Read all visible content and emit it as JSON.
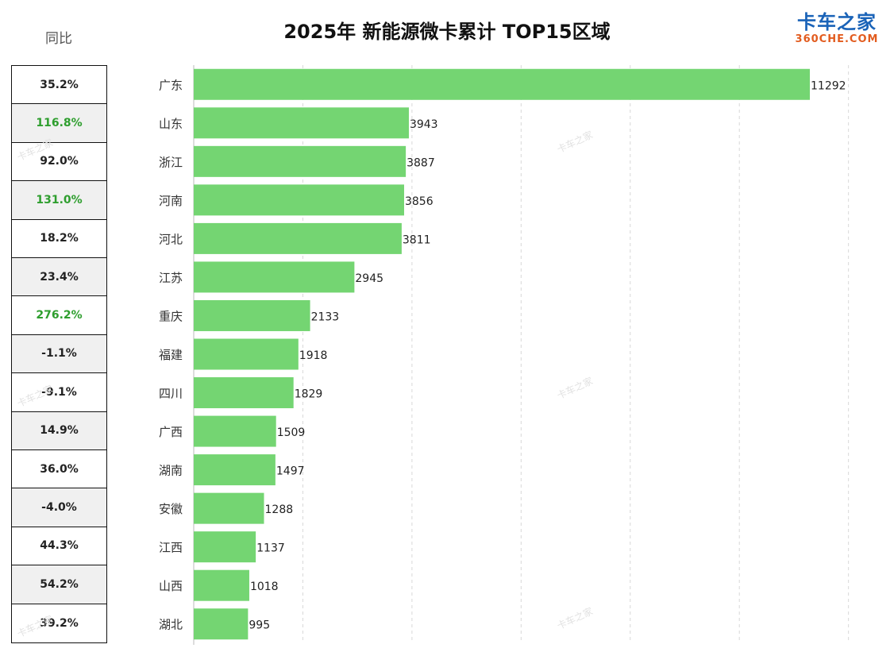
{
  "title": "2025年 新能源微卡累计 TOP15区域",
  "yoy_header": "同比",
  "logo": {
    "main": "卡车之家",
    "sub": "360CHE.COM"
  },
  "watermark": "卡车之家",
  "colors": {
    "bar": "#74d572",
    "yoy_positive_high": "#2e9e2e",
    "grid": "#d8d8d8"
  },
  "chart_data": {
    "type": "bar",
    "orientation": "horizontal",
    "title": "2025年 新能源微卡累计 TOP15区域",
    "categories": [
      "广东",
      "山东",
      "浙江",
      "河南",
      "河北",
      "江苏",
      "重庆",
      "福建",
      "四川",
      "广西",
      "湖南",
      "安徽",
      "江西",
      "山西",
      "湖北"
    ],
    "values": [
      11292,
      3943,
      3887,
      3856,
      3811,
      2945,
      2133,
      1918,
      1829,
      1509,
      1497,
      1288,
      1137,
      1018,
      995
    ],
    "yoy": [
      "35.2%",
      "116.8%",
      "92.0%",
      "131.0%",
      "18.2%",
      "23.4%",
      "276.2%",
      "-1.1%",
      "-9.1%",
      "14.9%",
      "36.0%",
      "-4.0%",
      "44.3%",
      "54.2%",
      "39.2%"
    ],
    "yoy_highlight": [
      false,
      true,
      false,
      true,
      false,
      false,
      true,
      false,
      false,
      false,
      false,
      false,
      false,
      false,
      false
    ],
    "xlim": [
      0,
      14000
    ],
    "grid": "vertical dashed",
    "data_labels": true
  }
}
